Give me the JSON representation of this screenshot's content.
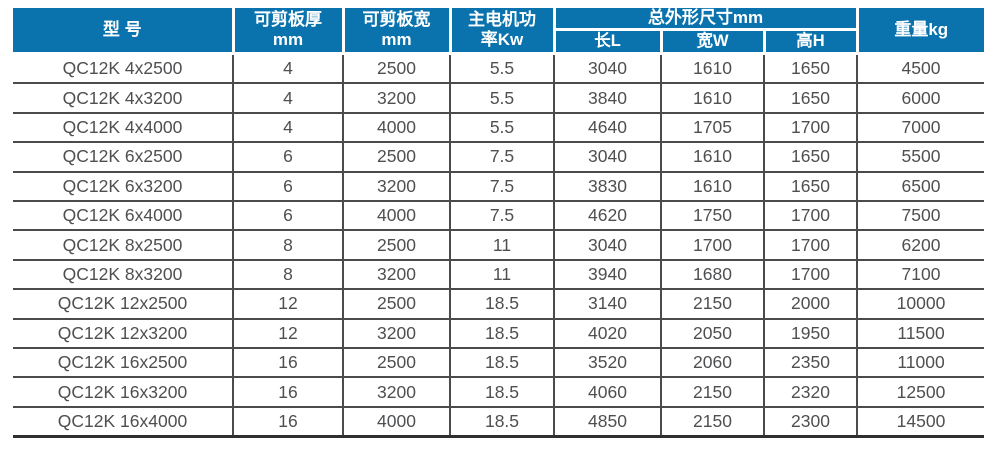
{
  "colors": {
    "header_bg": "#0a73ad",
    "header_text": "#ffffff",
    "grid_line": "#4a4b4d",
    "body_text": "#4e4f51"
  },
  "table": {
    "header": {
      "model": "型 号",
      "thickness_line1": "可剪板厚",
      "thickness_line2": "mm",
      "width_line1": "可剪板宽",
      "width_line2": "mm",
      "power_line1": "主电机功",
      "power_line2": "率Kw",
      "dimensions_group": "总外形尺寸mm",
      "dim_length": "长L",
      "dim_width": "宽W",
      "dim_height": "高H",
      "weight": "重量kg"
    },
    "column_keys": [
      "model",
      "thickness",
      "width",
      "power",
      "length",
      "width_w",
      "height",
      "weight"
    ],
    "rows": [
      {
        "model": "QC12K 4x2500",
        "thickness": "4",
        "width": "2500",
        "power": "5.5",
        "length": "3040",
        "width_w": "1610",
        "height": "1650",
        "weight": "4500"
      },
      {
        "model": "QC12K 4x3200",
        "thickness": "4",
        "width": "3200",
        "power": "5.5",
        "length": "3840",
        "width_w": "1610",
        "height": "1650",
        "weight": "6000"
      },
      {
        "model": "QC12K 4x4000",
        "thickness": "4",
        "width": "4000",
        "power": "5.5",
        "length": "4640",
        "width_w": "1705",
        "height": "1700",
        "weight": "7000"
      },
      {
        "model": "QC12K 6x2500",
        "thickness": "6",
        "width": "2500",
        "power": "7.5",
        "length": "3040",
        "width_w": "1610",
        "height": "1650",
        "weight": "5500"
      },
      {
        "model": "QC12K 6x3200",
        "thickness": "6",
        "width": "3200",
        "power": "7.5",
        "length": "3830",
        "width_w": "1610",
        "height": "1650",
        "weight": "6500"
      },
      {
        "model": "QC12K 6x4000",
        "thickness": "6",
        "width": "4000",
        "power": "7.5",
        "length": "4620",
        "width_w": "1750",
        "height": "1700",
        "weight": "7500"
      },
      {
        "model": "QC12K 8x2500",
        "thickness": "8",
        "width": "2500",
        "power": "11",
        "length": "3040",
        "width_w": "1700",
        "height": "1700",
        "weight": "6200"
      },
      {
        "model": "QC12K 8x3200",
        "thickness": "8",
        "width": "3200",
        "power": "11",
        "length": "3940",
        "width_w": "1680",
        "height": "1700",
        "weight": "7100"
      },
      {
        "model": "QC12K 12x2500",
        "thickness": "12",
        "width": "2500",
        "power": "18.5",
        "length": "3140",
        "width_w": "2150",
        "height": "2000",
        "weight": "10000"
      },
      {
        "model": "QC12K 12x3200",
        "thickness": "12",
        "width": "3200",
        "power": "18.5",
        "length": "4020",
        "width_w": "2050",
        "height": "1950",
        "weight": "11500"
      },
      {
        "model": "QC12K 16x2500",
        "thickness": "16",
        "width": "2500",
        "power": "18.5",
        "length": "3520",
        "width_w": "2060",
        "height": "2350",
        "weight": "11000"
      },
      {
        "model": "QC12K 16x3200",
        "thickness": "16",
        "width": "3200",
        "power": "18.5",
        "length": "4060",
        "width_w": "2150",
        "height": "2320",
        "weight": "12500"
      },
      {
        "model": "QC12K 16x4000",
        "thickness": "16",
        "width": "4000",
        "power": "18.5",
        "length": "4850",
        "width_w": "2150",
        "height": "2300",
        "weight": "14500"
      }
    ]
  }
}
